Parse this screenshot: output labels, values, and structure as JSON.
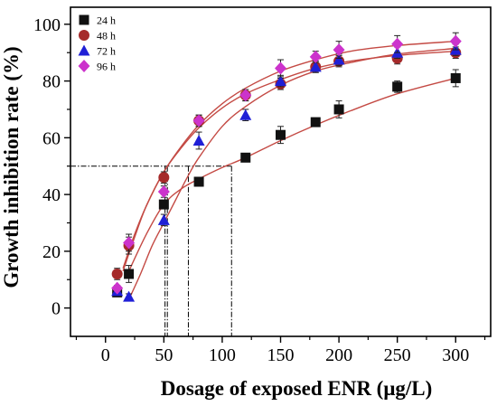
{
  "chart_data": {
    "type": "scatter",
    "xlabel": "Dosage of exposed ENR (μg/L)",
    "ylabel": "Growth inhibition rate (%)",
    "xlim": [
      -30,
      330
    ],
    "ylim": [
      -10,
      106
    ],
    "x_ticks": [
      0,
      50,
      100,
      150,
      200,
      250,
      300
    ],
    "y_ticks": [
      0,
      20,
      40,
      60,
      80,
      100
    ],
    "grid": false,
    "legend_position": "top-left",
    "series": [
      {
        "name": "24 h",
        "color": "#111111",
        "marker": "square",
        "x": [
          10,
          20,
          50,
          80,
          120,
          150,
          180,
          200,
          250,
          300
        ],
        "y": [
          5.5,
          12,
          36.5,
          44.5,
          53,
          61,
          65.5,
          70,
          78,
          81
        ],
        "err": [
          1,
          3,
          1.5,
          1.5,
          1,
          3,
          1,
          3,
          2,
          3
        ]
      },
      {
        "name": "48 h",
        "color": "#a52a2a",
        "marker": "circle",
        "x": [
          10,
          20,
          50,
          80,
          120,
          150,
          180,
          200,
          250,
          300
        ],
        "y": [
          12,
          22,
          46,
          66,
          75,
          79,
          85,
          87,
          88,
          90
        ],
        "err": [
          2,
          3,
          2,
          2,
          2,
          2,
          2,
          2,
          2,
          2
        ]
      },
      {
        "name": "72 h",
        "color": "#1f1fd6",
        "marker": "triangle",
        "x": [
          10,
          20,
          50,
          80,
          120,
          150,
          180,
          200,
          250,
          300
        ],
        "y": [
          6,
          4,
          31,
          59,
          68,
          80,
          85,
          87.5,
          90,
          91
        ],
        "err": [
          1,
          1,
          2,
          3,
          2,
          2,
          2,
          2,
          2,
          2
        ]
      },
      {
        "name": "96 h",
        "color": "#cc33cc",
        "marker": "diamond",
        "x": [
          10,
          20,
          50,
          80,
          120,
          150,
          180,
          200,
          250,
          300
        ],
        "y": [
          7,
          23,
          41,
          66,
          75,
          84.5,
          88.5,
          91,
          93,
          94
        ],
        "err": [
          1,
          3,
          2,
          2,
          2,
          3,
          2,
          3,
          3,
          3
        ]
      }
    ],
    "fit_curves": [
      {
        "color": "#c44a44",
        "x": [
          20,
          35,
          50,
          65,
          80,
          100,
          120,
          150,
          180,
          210,
          250,
          300
        ],
        "y": [
          13,
          26,
          36.5,
          42,
          45.5,
          49.5,
          53,
          59,
          64.5,
          69.5,
          75.5,
          81
        ]
      },
      {
        "color": "#c44a44",
        "x": [
          15,
          25,
          35,
          50,
          65,
          80,
          100,
          120,
          150,
          180,
          210,
          250,
          300
        ],
        "y": [
          13,
          25,
          36,
          48,
          56.5,
          63.5,
          70.5,
          75.5,
          80.5,
          84.5,
          87,
          89,
          90.5
        ]
      },
      {
        "color": "#c44a44",
        "x": [
          20,
          30,
          40,
          50,
          60,
          70,
          80,
          100,
          120,
          150,
          180,
          210,
          250,
          300
        ],
        "y": [
          3,
          12,
          22,
          30,
          38,
          46,
          53,
          64,
          71,
          78.5,
          83.5,
          86.5,
          89.5,
          91.5
        ]
      },
      {
        "color": "#c44a44",
        "x": [
          15,
          25,
          35,
          50,
          65,
          80,
          100,
          120,
          150,
          180,
          210,
          250,
          300
        ],
        "y": [
          14,
          26,
          36,
          48,
          57,
          64.5,
          72,
          77.5,
          83.5,
          87.5,
          90.5,
          92.5,
          94
        ]
      }
    ],
    "reference_lines": {
      "y": 50,
      "x": [
        51,
        53,
        71,
        108
      ]
    }
  }
}
